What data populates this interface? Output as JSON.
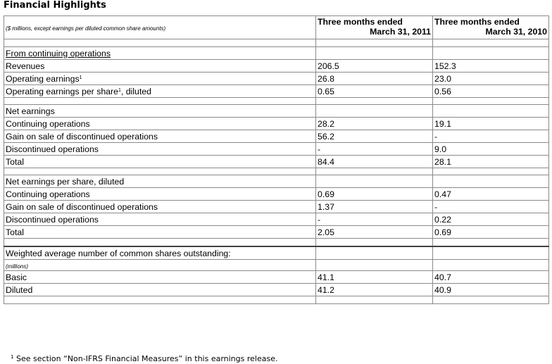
{
  "title": "Financial Highlights",
  "header": {
    "note": "($ millions, except earnings per diluted common share amounts)",
    "col1_line1": "Three months ended",
    "col1_line2": "March 31, 2011",
    "col2_line1": "Three months ended",
    "col2_line2": "March 31, 2010"
  },
  "sections": {
    "continuing": {
      "heading": "From continuing operations",
      "revenues": {
        "label": "Revenues",
        "v2011": "206.5",
        "v2010": "152.3"
      },
      "op_earnings": {
        "label": "Operating earnings",
        "sup": "1",
        "v2011": "26.8",
        "v2010": "23.0"
      },
      "op_eps": {
        "label": "Operating earnings per share",
        "sup": "1",
        "label_suffix": ", diluted",
        "v2011": "0.65",
        "v2010": "0.56"
      }
    },
    "net_earnings": {
      "heading": "Net earnings",
      "rows": [
        {
          "label": "Continuing operations",
          "v2011": "28.2",
          "v2010": "19.1"
        },
        {
          "label": "Gain on sale of discontinued operations",
          "v2011": "56.2",
          "v2010": "-"
        },
        {
          "label": "Discontinued operations",
          "v2011": "-",
          "v2010": "9.0"
        },
        {
          "label": "Total",
          "v2011": "84.4",
          "v2010": "28.1"
        }
      ]
    },
    "net_eps": {
      "heading": "Net earnings per share, diluted",
      "rows": [
        {
          "label": "Continuing operations",
          "v2011": "0.69",
          "v2010": "0.47"
        },
        {
          "label": "Gain on sale of discontinued operations",
          "v2011": "1.37",
          "v2010": "-"
        },
        {
          "label": "Discontinued operations",
          "v2011": "-",
          "v2010": "0.22"
        },
        {
          "label": "Total",
          "v2011": "2.05",
          "v2010": "0.69"
        }
      ]
    },
    "shares": {
      "heading": "Weighted average number of common shares outstanding:",
      "unit": "(millions)",
      "rows": [
        {
          "label": "Basic",
          "v2011": "41.1",
          "v2010": "40.7"
        },
        {
          "label": "Diluted",
          "v2011": "41.2",
          "v2010": "40.9"
        }
      ]
    }
  },
  "footnote": {
    "marker": "1",
    "text": " See section “Non-IFRS Financial Measures” in this earnings release."
  }
}
